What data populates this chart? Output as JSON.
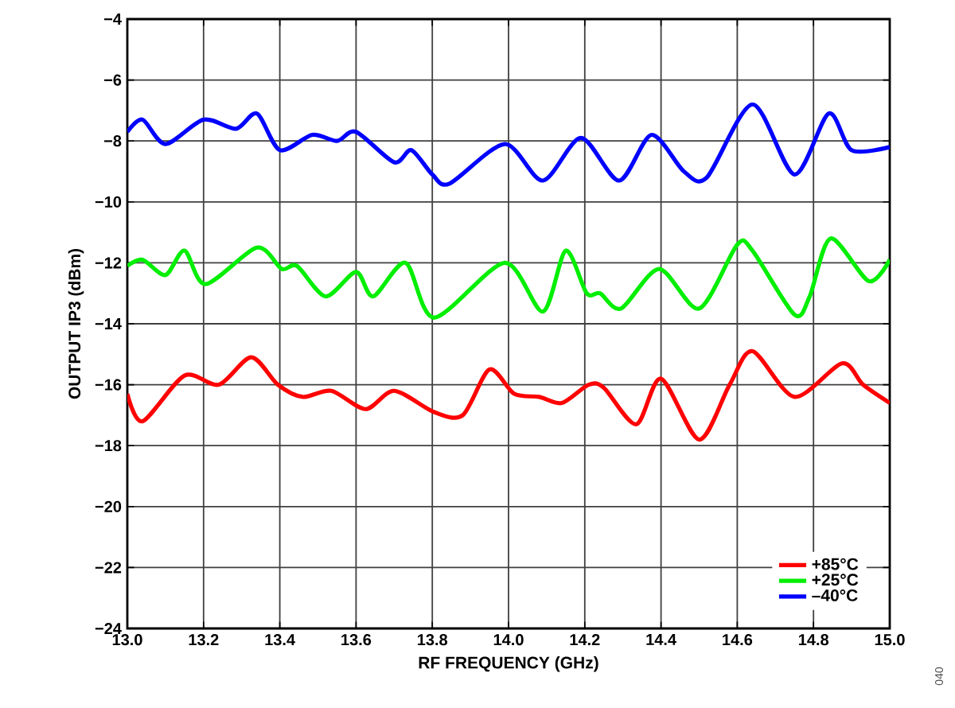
{
  "chart_data": {
    "type": "line",
    "xlabel": "RF FREQUENCY (GHz)",
    "ylabel": "OUTPUT IP3 (dBm)",
    "xlim": [
      13.0,
      15.0
    ],
    "xticks": [
      {
        "value": 13.0,
        "label": "13.0"
      },
      13.2,
      13.4,
      13.6,
      13.8,
      {
        "value": 14.0,
        "label": "14.0"
      },
      14.2,
      14.4,
      14.6,
      14.8,
      {
        "value": 15.0,
        "label": "15.0"
      }
    ],
    "ylim": [
      -24,
      -4
    ],
    "yticks": [
      {
        "value": -24,
        "label": "−24"
      },
      {
        "value": -22,
        "label": "−22"
      },
      {
        "value": -20,
        "label": "−20"
      },
      {
        "value": -18,
        "label": "−18"
      },
      {
        "value": -16,
        "label": "−16"
      },
      {
        "value": -14,
        "label": "−14"
      },
      {
        "value": -12,
        "label": "−12"
      },
      {
        "value": -10,
        "label": "−10"
      },
      {
        "value": -8,
        "label": "−8"
      },
      {
        "value": -6,
        "label": "−6"
      },
      {
        "value": -4,
        "label": "−4"
      }
    ],
    "grid": true,
    "legend": "bottom right",
    "marker": "none",
    "line_style": "solid",
    "annotations": [
      "040"
    ],
    "series": [
      {
        "name": "+85°C",
        "color": "#ff0000",
        "x": [
          13.0,
          13.04,
          13.15,
          13.24,
          13.325,
          13.395,
          13.46,
          13.535,
          13.625,
          13.7,
          13.805,
          13.88,
          13.95,
          14.015,
          14.08,
          14.14,
          14.21,
          14.25,
          14.335,
          14.4,
          14.5,
          14.58,
          14.64,
          14.75,
          14.875,
          14.93,
          15.0
        ],
        "values": [
          -16.3,
          -17.2,
          -15.7,
          -16.0,
          -15.1,
          -16.0,
          -16.4,
          -16.2,
          -16.8,
          -16.2,
          -16.9,
          -17.0,
          -15.5,
          -16.3,
          -16.4,
          -16.6,
          -16.0,
          -16.1,
          -17.3,
          -15.8,
          -17.8,
          -16.0,
          -14.9,
          -16.4,
          -15.3,
          -16.0,
          -16.6
        ]
      },
      {
        "name": "+25°C",
        "color": "#00ee00",
        "x": [
          13.0,
          13.04,
          13.1,
          13.15,
          13.205,
          13.34,
          13.405,
          13.445,
          13.52,
          13.6,
          13.645,
          13.73,
          13.805,
          13.99,
          14.09,
          14.15,
          14.205,
          14.24,
          14.295,
          14.395,
          14.5,
          14.6,
          14.64,
          14.75,
          14.79,
          14.845,
          14.945,
          15.0
        ],
        "values": [
          -12.1,
          -11.9,
          -12.4,
          -11.6,
          -12.7,
          -11.5,
          -12.2,
          -12.1,
          -13.1,
          -12.3,
          -13.1,
          -12.0,
          -13.8,
          -12.0,
          -13.6,
          -11.6,
          -13.0,
          -13.0,
          -13.5,
          -12.2,
          -13.5,
          -11.4,
          -11.6,
          -13.7,
          -13.1,
          -11.2,
          -12.6,
          -11.9
        ]
      },
      {
        "name": "–40°C",
        "color": "#0000ff",
        "x": [
          13.0,
          13.04,
          13.1,
          13.2,
          13.285,
          13.34,
          13.4,
          13.485,
          13.55,
          13.6,
          13.7,
          13.745,
          13.8,
          13.845,
          13.99,
          14.09,
          14.19,
          14.29,
          14.375,
          14.46,
          14.52,
          14.64,
          14.75,
          14.84,
          14.9,
          15.0
        ],
        "values": [
          -7.7,
          -7.3,
          -8.1,
          -7.3,
          -7.6,
          -7.1,
          -8.3,
          -7.8,
          -8.0,
          -7.7,
          -8.7,
          -8.3,
          -9.1,
          -9.4,
          -8.1,
          -9.3,
          -7.9,
          -9.3,
          -7.8,
          -9.0,
          -9.2,
          -6.8,
          -9.1,
          -7.1,
          -8.3,
          -8.2
        ]
      }
    ]
  }
}
